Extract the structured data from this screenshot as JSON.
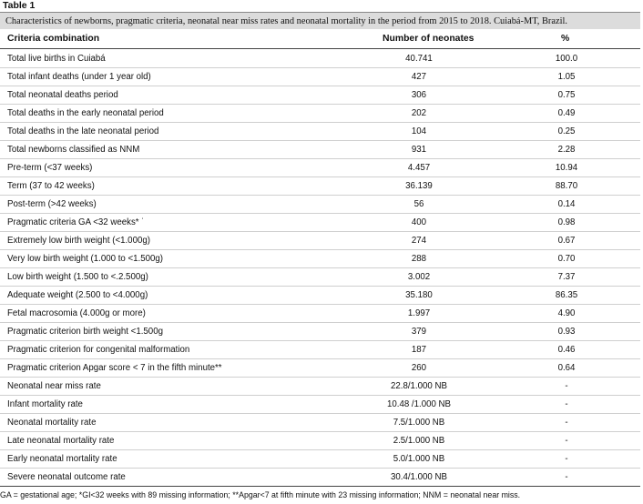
{
  "table_label": "Table 1",
  "caption": "Characteristics of newborns, pragmatic criteria, neonatal near miss rates and neonatal mortality in the period from 2015 to 2018. Cuiabá-MT, Brazil.",
  "headers": {
    "criteria": "Criteria combination",
    "number": "Number of neonates",
    "percent": "%"
  },
  "rows": [
    {
      "label": "Total live births in Cuiabá",
      "number": "40.741",
      "percent": "100.0"
    },
    {
      "label": "Total infant deaths (under 1 year old)",
      "number": "427",
      "percent": "1.05"
    },
    {
      "label": "Total neonatal deaths period",
      "number": "306",
      "percent": "0.75"
    },
    {
      "label": "Total deaths in the early neonatal period",
      "number": "202",
      "percent": "0.49"
    },
    {
      "label": "Total deaths in the late neonatal period",
      "number": "104",
      "percent": "0.25"
    },
    {
      "label": "Total newborns classified as NNM",
      "number": "931",
      "percent": "2.28"
    },
    {
      "label": "Pre-term (<37 weeks)",
      "number": "4.457",
      "percent": "10.94"
    },
    {
      "label": "Term (37 to 42 weeks)",
      "number": "36.139",
      "percent": "88.70"
    },
    {
      "label": "Post-term (>42 weeks)",
      "number": "56",
      "percent": "0.14"
    },
    {
      "label": "Pragmatic criteria GA <32 weeks* ˙",
      "number": "400",
      "percent": "0.98"
    },
    {
      "label": "Extremely low birth weight (<1.000g)",
      "number": "274",
      "percent": "0.67"
    },
    {
      "label": "Very low birth weight (1.000 to <1.500g)",
      "number": "288",
      "percent": "0.70"
    },
    {
      "label": "Low birth weight (1.500 to <.2.500g)",
      "number": "3.002",
      "percent": "7.37"
    },
    {
      "label": "Adequate weight (2.500 to <4.000g)",
      "number": "35.180",
      "percent": "86.35"
    },
    {
      "label": "Fetal macrosomia (4.000g or more)",
      "number": "1.997",
      "percent": "4.90"
    },
    {
      "label": "Pragmatic criterion birth weight <1.500g",
      "number": "379",
      "percent": "0.93"
    },
    {
      "label": "Pragmatic criterion for congenital malformation",
      "number": "187",
      "percent": "0.46"
    },
    {
      "label": "Pragmatic criterion Apgar score < 7 in the fifth minute**",
      "number": "260",
      "percent": "0.64"
    },
    {
      "label": "Neonatal near miss rate",
      "number": "22.8/1.000 NB",
      "percent": "-"
    },
    {
      "label": "Infant mortality rate",
      "number": "10.48 /1.000 NB",
      "percent": "-"
    },
    {
      "label": "Neonatal mortality rate",
      "number": "7.5/1.000 NB",
      "percent": "-"
    },
    {
      "label": "Late neonatal mortality rate",
      "number": "2.5/1.000 NB",
      "percent": "-"
    },
    {
      "label": "Early neonatal mortality rate",
      "number": "5.0/1.000 NB",
      "percent": "-"
    },
    {
      "label": "Severe neonatal outcome rate",
      "number": "30.4/1.000 NB",
      "percent": "-"
    }
  ],
  "footnote": "GA = gestational age; *GI<32 weeks with 89 missing information; **Apgar<7 at fifth minute with 23 missing information; NNM = neonatal near miss."
}
